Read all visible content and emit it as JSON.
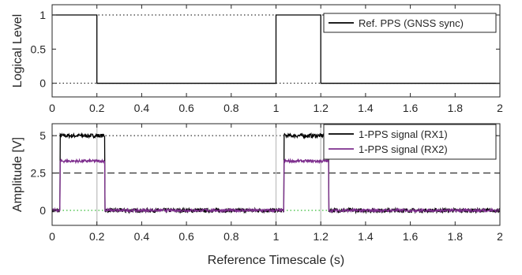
{
  "chart_data": [
    {
      "type": "line",
      "ylabel": "Logical Level",
      "xlim": [
        0,
        2
      ],
      "ylim": [
        -0.2,
        1.15
      ],
      "xticks": [
        "0",
        "0.2",
        "0.4",
        "0.6",
        "0.8",
        "1",
        "1.2",
        "1.4",
        "1.6",
        "1.8",
        "2"
      ],
      "xtick_values": [
        0,
        0.2,
        0.4,
        0.6,
        0.8,
        1,
        1.2,
        1.4,
        1.6,
        1.8,
        2
      ],
      "yticks": [
        "0",
        "0.5",
        "1"
      ],
      "ytick_values": [
        0,
        0.5,
        1
      ],
      "reference_lines": [
        1,
        0
      ],
      "legend": "top-right",
      "series": [
        {
          "name": "Ref. PPS (GNSS sync)",
          "color": "#000000",
          "x": [
            0,
            0.2,
            0.2,
            1.0,
            1.0,
            1.2,
            1.2,
            2.0
          ],
          "y": [
            1,
            1,
            0,
            0,
            1,
            1,
            0,
            0
          ]
        }
      ]
    },
    {
      "type": "line",
      "ylabel": "Amplitude [V]",
      "xlabel": "Reference Timescale (s)",
      "xlim": [
        0,
        2
      ],
      "ylim": [
        -1,
        5.8
      ],
      "xticks": [
        "0",
        "0.2",
        "0.4",
        "0.6",
        "0.8",
        "1",
        "1.2",
        "1.4",
        "1.6",
        "1.8",
        "2"
      ],
      "xtick_values": [
        0,
        0.2,
        0.4,
        0.6,
        0.8,
        1,
        1.2,
        1.4,
        1.6,
        1.8,
        2
      ],
      "yticks": [
        "0",
        "2.5",
        "5"
      ],
      "ytick_values": [
        0,
        2.5,
        5
      ],
      "reference_lines": [
        {
          "y": 5,
          "style": "dotted",
          "color": "#000000"
        },
        {
          "y": 2.5,
          "style": "dashed",
          "color": "#000000"
        },
        {
          "y": 0,
          "style": "dotted",
          "color": "#00aa00"
        }
      ],
      "vertical_marks": [
        0.2,
        1.0,
        1.2
      ],
      "legend": "top-right",
      "series": [
        {
          "name": "1-PPS signal (RX1)",
          "color": "#000000",
          "high": 5.0,
          "low": 0.0,
          "pulses": [
            [
              0.035,
              0.235
            ],
            [
              1.035,
              1.235
            ]
          ]
        },
        {
          "name": "1-PPS signal (RX2)",
          "color": "#7e2f8e",
          "high": 3.3,
          "low": 0.0,
          "pulses": [
            [
              0.035,
              0.235
            ],
            [
              1.035,
              1.235
            ]
          ]
        }
      ]
    }
  ]
}
